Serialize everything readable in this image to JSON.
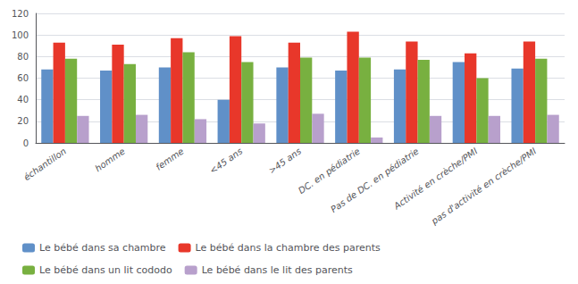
{
  "chart_data": {
    "type": "bar",
    "categories": [
      "échantillon",
      "homme",
      "femme",
      "<45 ans",
      ">45 ans",
      "DC. en pédiatrie",
      "Pas de DC. en pédiatrie",
      "Activité en crèche/PMI",
      "pas d'activité en crèche/PMI"
    ],
    "series": [
      {
        "name": "Le bébé dans sa chambre",
        "color": "#6090C8",
        "values": [
          68,
          67,
          70,
          40,
          70,
          67,
          68,
          75,
          69
        ]
      },
      {
        "name": "Le bébé dans la chambre des parents",
        "color": "#E8372A",
        "values": [
          93,
          91,
          97,
          99,
          93,
          103,
          94,
          83,
          94
        ]
      },
      {
        "name": "Le bébé dans un lit cododo",
        "color": "#78B040",
        "values": [
          78,
          73,
          84,
          75,
          79,
          79,
          77,
          60,
          78
        ]
      },
      {
        "name": "Le bébé dans le lit des parents",
        "color": "#B8A0CC",
        "values": [
          25,
          26,
          22,
          18,
          27,
          5,
          25,
          25,
          26
        ]
      }
    ],
    "ylim": [
      0,
      120
    ],
    "yticks": [
      0,
      20,
      40,
      60,
      80,
      100,
      120
    ],
    "grid": true,
    "legend": "bottom"
  }
}
